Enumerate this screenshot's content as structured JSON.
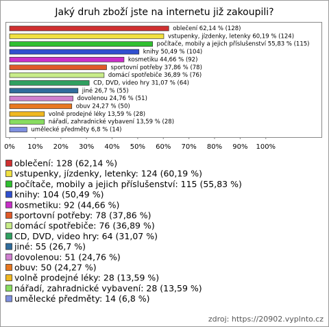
{
  "chart_data": {
    "type": "bar",
    "orientation": "horizontal",
    "title": "Jaký druh zboží jste na internetu již zakoupili?",
    "categories": [
      "oblečení",
      "vstupenky, jízdenky, letenky",
      "počítače, mobily a jejich příslušenství",
      "knihy",
      "kosmetiku",
      "sportovní potřeby",
      "domácí spotřebiče",
      "CD, DVD, video hry",
      "jiné",
      "dovolenou",
      "obuv",
      "volně prodejné léky",
      "nářadí, zahradnické vybavení",
      "umělecké předměty"
    ],
    "values": [
      62.14,
      60.19,
      55.83,
      50.49,
      44.66,
      37.86,
      36.89,
      31.07,
      26.7,
      24.76,
      24.27,
      13.59,
      13.59,
      6.8
    ],
    "value_labels": [
      "oblečení 62,14 % (128)",
      "vstupenky, jízdenky, letenky 60,19 % (124)",
      "počítače, mobily a jejich příslušenství 55,83 % (115)",
      "knihy 50,49 % (104)",
      "kosmetiku 44,66 % (92)",
      "sportovní potřeby 37,86 % (78)",
      "domácí spotřebiče 36,89 % (76)",
      "CD, DVD, video hry 31,07 % (64)",
      "jiné 26,7 % (55)",
      "dovolenou 24,76 % (51)",
      "obuv 24,27 % (50)",
      "volně prodejné léky 13,59 % (28)",
      "nářadí, zahradnické vybavení 13,59 % (28)",
      "umělecké předměty 6,8 % (14)"
    ],
    "legend_labels": [
      "oblečení: 128 (62,14 %)",
      "vstupenky, jízdenky, letenky: 124 (60,19 %)",
      "počítače, mobily a jejich příslušenství: 115 (55,83 %)",
      "knihy: 104 (50,49 %)",
      "kosmetiku: 92 (44,66 %)",
      "sportovní potřeby: 78 (37,86 %)",
      "domácí spotřebiče: 76 (36,89 %)",
      "CD, DVD, video hry: 64 (31,07 %)",
      "jiné: 55 (26,7 %)",
      "dovolenou: 51 (24,76 %)",
      "obuv: 50 (24,27 %)",
      "volně prodejné léky: 28 (13,59 %)",
      "nářadí, zahradnické vybavení: 28 (13,59 %)",
      "umělecké předměty: 14 (6,8 %)"
    ],
    "colors": [
      "#d03030",
      "#f0e040",
      "#30c030",
      "#3050d0",
      "#c830c8",
      "#e05a28",
      "#c8ec88",
      "#30a060",
      "#2f6c9c",
      "#d080d0",
      "#e87820",
      "#f0b820",
      "#88dd60",
      "#7f90e0"
    ],
    "xlim": [
      0,
      122
    ],
    "xticks": [
      {
        "value": 0,
        "label": "0%"
      },
      {
        "value": 10,
        "label": "10%"
      },
      {
        "value": 20,
        "label": "20%"
      },
      {
        "value": 30,
        "label": "30%"
      },
      {
        "value": 40,
        "label": "40%"
      },
      {
        "value": 50,
        "label": "50%"
      },
      {
        "value": 60,
        "label": "60%"
      },
      {
        "value": 70,
        "label": "70%"
      },
      {
        "value": 80,
        "label": "80%"
      },
      {
        "value": 90,
        "label": "90%"
      },
      {
        "value": 100,
        "label": "100%"
      }
    ],
    "source": "zdroj: https://20902.vyplnto.cz"
  }
}
